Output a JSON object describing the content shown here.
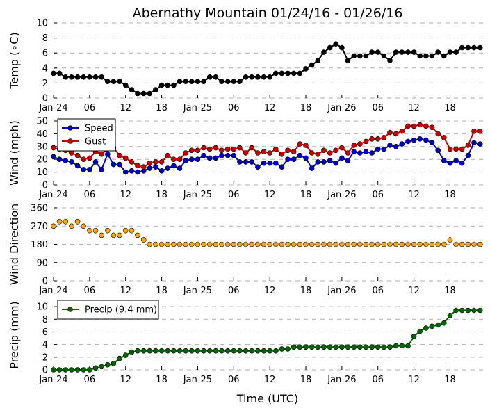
{
  "title": "Abernathy Mountain 01/24/16 - 01/26/16",
  "xlabel": "Time (UTC)",
  "x_ticks": [
    {
      "hour": 0,
      "label": "Jan-24"
    },
    {
      "hour": 6,
      "label": "06"
    },
    {
      "hour": 12,
      "label": "12"
    },
    {
      "hour": 18,
      "label": "18"
    },
    {
      "hour": 24,
      "label": "Jan-25"
    },
    {
      "hour": 30,
      "label": "06"
    },
    {
      "hour": 36,
      "label": "12"
    },
    {
      "hour": 42,
      "label": "18"
    },
    {
      "hour": 48,
      "label": "Jan-26"
    },
    {
      "hour": 54,
      "label": "06"
    },
    {
      "hour": 60,
      "label": "12"
    },
    {
      "hour": 66,
      "label": "18"
    }
  ],
  "x_range": [
    0,
    71.5
  ],
  "chart_data": [
    {
      "type": "line",
      "id": "temp",
      "ylabel": "Temp (∘C)",
      "ylim": [
        0,
        10
      ],
      "yticks": [
        "0",
        "2",
        "4",
        "6",
        "8",
        "10"
      ],
      "grid": true,
      "x_hours": [
        0,
        1,
        2,
        3,
        4,
        5,
        6,
        7,
        8,
        9,
        10,
        11,
        12,
        13,
        14,
        15,
        16,
        17,
        18,
        19,
        20,
        21,
        22,
        23,
        24,
        25,
        26,
        27,
        28,
        29,
        30,
        31,
        32,
        33,
        34,
        35,
        36,
        37,
        38,
        39,
        40,
        41,
        42,
        43,
        44,
        45,
        46,
        47,
        48,
        49,
        50,
        51,
        52,
        53,
        54,
        55,
        56,
        57,
        58,
        59,
        60,
        61,
        62,
        63,
        64,
        65,
        66,
        67,
        68,
        69,
        70,
        71
      ],
      "series": [
        {
          "name": "Temp",
          "color": "#000000",
          "values": [
            3.3,
            3.3,
            2.8,
            2.8,
            2.8,
            2.8,
            2.8,
            2.8,
            2.8,
            2.2,
            2.2,
            2.2,
            1.7,
            1.1,
            0.6,
            0.6,
            0.6,
            1.1,
            1.7,
            1.7,
            1.7,
            2.2,
            2.2,
            2.2,
            2.2,
            2.2,
            2.8,
            2.8,
            2.2,
            2.2,
            2.2,
            2.2,
            2.8,
            2.8,
            2.8,
            2.8,
            2.8,
            3.3,
            3.3,
            3.3,
            3.3,
            3.3,
            3.9,
            4.4,
            5.0,
            6.1,
            6.7,
            7.2,
            6.7,
            5.0,
            5.6,
            5.6,
            5.6,
            6.1,
            6.1,
            5.6,
            5.0,
            6.1,
            6.1,
            6.1,
            6.1,
            5.6,
            5.6,
            5.6,
            6.1,
            5.6,
            6.1,
            6.1,
            6.7,
            6.7,
            6.7,
            6.7
          ]
        }
      ]
    },
    {
      "type": "line",
      "id": "wind",
      "ylabel": "Wind (mph)",
      "ylim": [
        0,
        50
      ],
      "yticks": [
        "0",
        "10",
        "20",
        "30",
        "40",
        "50"
      ],
      "grid": true,
      "legend": "upper-left",
      "x_hours": [
        0,
        1,
        2,
        3,
        4,
        5,
        6,
        7,
        8,
        9,
        10,
        11,
        12,
        13,
        14,
        15,
        16,
        17,
        18,
        19,
        20,
        21,
        22,
        23,
        24,
        25,
        26,
        27,
        28,
        29,
        30,
        31,
        32,
        33,
        34,
        35,
        36,
        37,
        38,
        39,
        40,
        41,
        42,
        43,
        44,
        45,
        46,
        47,
        48,
        49,
        50,
        51,
        52,
        53,
        54,
        55,
        56,
        57,
        58,
        59,
        60,
        61,
        62,
        63,
        64,
        65,
        66,
        67,
        68,
        69,
        70,
        71
      ],
      "series": [
        {
          "name": "Speed",
          "color": "#0000cc",
          "values": [
            22,
            20,
            19,
            18,
            15,
            12,
            12,
            18,
            12,
            24,
            16,
            16,
            10,
            11,
            10,
            11,
            13,
            14,
            11,
            13,
            15,
            13,
            19,
            20,
            20,
            23,
            21,
            21,
            23,
            23,
            23,
            18,
            18,
            18,
            14,
            17,
            17,
            17,
            14,
            20,
            20,
            23,
            21,
            13,
            18,
            18,
            19,
            17,
            21,
            19,
            26,
            25,
            26,
            25,
            28,
            28,
            31,
            30,
            32,
            34,
            35,
            36,
            35,
            33,
            27,
            19,
            17,
            19,
            17,
            23,
            33,
            32
          ]
        },
        {
          "name": "Gust",
          "color": "#cc0000",
          "values": [
            29,
            28,
            27,
            25,
            23,
            20,
            21,
            26,
            24,
            28,
            29,
            23,
            21,
            18,
            15,
            14,
            17,
            18,
            18,
            23,
            20,
            20,
            25,
            27,
            27,
            29,
            28,
            29,
            27,
            28,
            28,
            29,
            25,
            29,
            25,
            26,
            25,
            28,
            24,
            27,
            26,
            32,
            31,
            25,
            24,
            27,
            25,
            27,
            29,
            25,
            31,
            32,
            34,
            36,
            36,
            37,
            41,
            40,
            42,
            46,
            46,
            47,
            46,
            45,
            40,
            37,
            28,
            28,
            28,
            31,
            42,
            42
          ]
        }
      ]
    },
    {
      "type": "scatter",
      "id": "wind-direction",
      "ylabel": "Wind Direction",
      "ylim": [
        0,
        360
      ],
      "yticks": [
        "0",
        "90",
        "180",
        "270",
        "360"
      ],
      "grid": true,
      "x_hours": [
        0,
        1,
        2,
        3,
        4,
        5,
        6,
        7,
        8,
        9,
        10,
        11,
        12,
        13,
        14,
        15,
        16,
        17,
        18,
        19,
        20,
        21,
        22,
        23,
        24,
        25,
        26,
        27,
        28,
        29,
        30,
        31,
        32,
        33,
        34,
        35,
        36,
        37,
        38,
        39,
        40,
        41,
        42,
        43,
        44,
        45,
        46,
        47,
        48,
        49,
        50,
        51,
        52,
        53,
        54,
        55,
        56,
        57,
        58,
        59,
        60,
        61,
        62,
        63,
        64,
        65,
        66,
        67,
        68,
        69,
        70,
        71
      ],
      "series": [
        {
          "name": "Direction",
          "color": "#ffa500",
          "values": [
            270,
            292,
            292,
            270,
            292,
            270,
            248,
            248,
            225,
            248,
            225,
            225,
            248,
            248,
            225,
            202,
            180,
            180,
            180,
            180,
            180,
            180,
            180,
            180,
            180,
            180,
            180,
            180,
            180,
            180,
            180,
            180,
            180,
            180,
            180,
            180,
            180,
            180,
            180,
            180,
            180,
            180,
            180,
            180,
            180,
            180,
            180,
            180,
            180,
            180,
            180,
            180,
            180,
            180,
            180,
            180,
            180,
            180,
            180,
            180,
            180,
            180,
            180,
            180,
            180,
            180,
            202,
            180,
            180,
            180,
            180,
            180
          ]
        }
      ]
    },
    {
      "type": "line",
      "id": "precip",
      "ylabel": "Precip (mm)",
      "ylim": [
        0,
        11
      ],
      "yticks": [
        "0",
        "2",
        "4",
        "6",
        "8",
        "10"
      ],
      "ytick_values": [
        0,
        2,
        4,
        6,
        8,
        10
      ],
      "grid": true,
      "legend": "upper-left",
      "x_hours": [
        0,
        1,
        2,
        3,
        4,
        5,
        6,
        7,
        8,
        9,
        10,
        11,
        12,
        13,
        14,
        15,
        16,
        17,
        18,
        19,
        20,
        21,
        22,
        23,
        24,
        25,
        26,
        27,
        28,
        29,
        30,
        31,
        32,
        33,
        34,
        35,
        36,
        37,
        38,
        39,
        40,
        41,
        42,
        43,
        44,
        45,
        46,
        47,
        48,
        49,
        50,
        51,
        52,
        53,
        54,
        55,
        56,
        57,
        58,
        59,
        60,
        61,
        62,
        63,
        64,
        65,
        66,
        67,
        68,
        69,
        70,
        71
      ],
      "series": [
        {
          "name": "Precip (9.4 mm)",
          "color": "#006600",
          "values": [
            0,
            0,
            0,
            0,
            0,
            0,
            0,
            0.3,
            0.5,
            0.8,
            1.0,
            1.8,
            2.3,
            2.8,
            3.0,
            3.0,
            3.0,
            3.0,
            3.0,
            3.0,
            3.0,
            3.0,
            3.0,
            3.0,
            3.0,
            3.0,
            3.0,
            3.0,
            3.0,
            3.0,
            3.0,
            3.0,
            3.0,
            3.0,
            3.0,
            3.0,
            3.0,
            3.0,
            3.3,
            3.3,
            3.6,
            3.6,
            3.6,
            3.6,
            3.6,
            3.6,
            3.6,
            3.6,
            3.6,
            3.6,
            3.6,
            3.6,
            3.6,
            3.6,
            3.6,
            3.6,
            3.6,
            3.8,
            3.8,
            3.8,
            5.3,
            6.1,
            6.6,
            6.9,
            7.1,
            7.4,
            8.6,
            9.4,
            9.4,
            9.4,
            9.4,
            9.4
          ]
        }
      ]
    }
  ]
}
